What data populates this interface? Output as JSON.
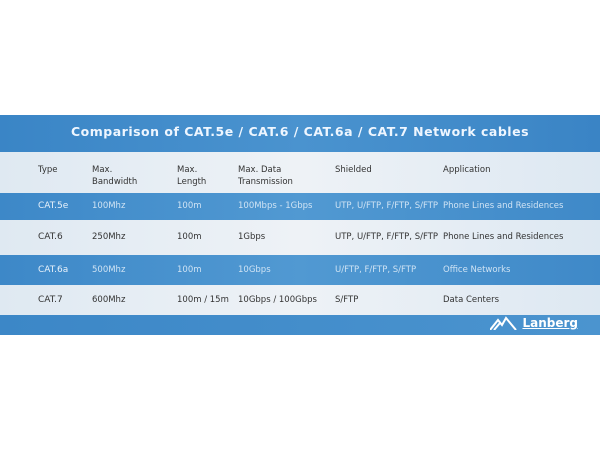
{
  "title": "Comparison of CAT.5e / CAT.6 / CAT.6a / CAT.7 Network cables",
  "headers": [
    "Type",
    "Max.\nBandwidth",
    "Max.\nLength",
    "Max. Data\nTransmission",
    "Shielded",
    "Application"
  ],
  "rows": [
    [
      "CAT.5e",
      "100Mhz",
      "100m",
      "100Mbps - 1Gbps",
      "UTP, U/FTP, F/FTP, S/FTP",
      "Phone Lines and Residences"
    ],
    [
      "CAT.6",
      "250Mhz",
      "100m",
      "1Gbps",
      "UTP, U/FTP, F/FTP, S/FTP",
      "Phone Lines and Residences"
    ],
    [
      "CAT.6a",
      "500Mhz",
      "100m",
      "10Gbps",
      "U/FTP, F/FTP, S/FTP",
      "Office Networks"
    ],
    [
      "CAT.7",
      "600Mhz",
      "100m / 15m",
      "10Gbps / 100Gbps",
      "S/FTP",
      "Data Centers"
    ]
  ],
  "logo": "Lanberg",
  "colors": {
    "accent": "#4790cc"
  }
}
